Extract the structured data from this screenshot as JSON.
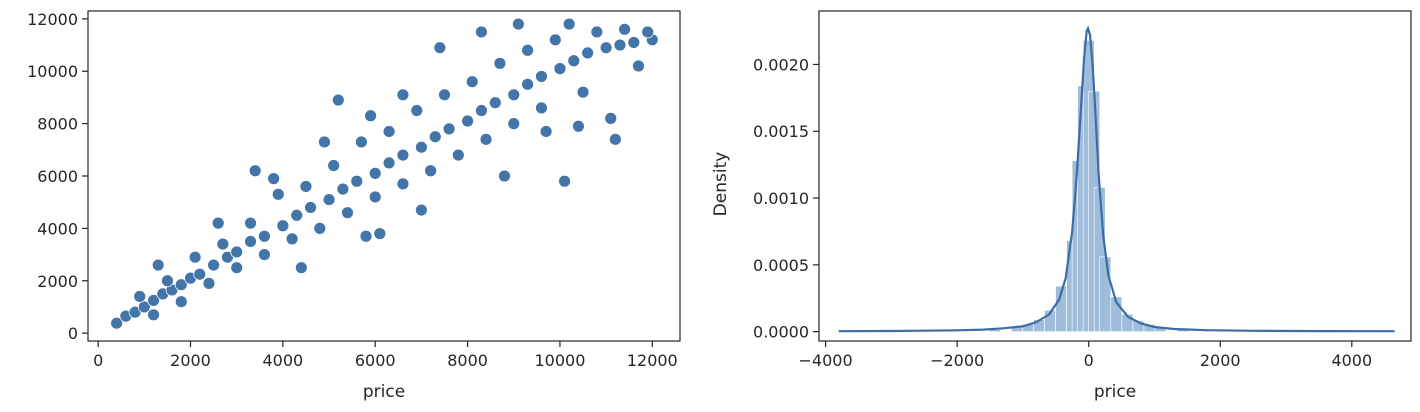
{
  "chart_data": [
    {
      "type": "scatter",
      "title": "",
      "xlabel": "price",
      "ylabel": "",
      "xlim": [
        -220,
        12600
      ],
      "ylim": [
        -300,
        12300
      ],
      "xticks": [
        {
          "value": 2000,
          "label": "2000"
        },
        {
          "value": 4000,
          "label": "4000"
        },
        {
          "value": 6000,
          "label": "6000"
        },
        {
          "value": 8000,
          "label": "8000"
        },
        {
          "value": 10000,
          "label": "10000"
        },
        {
          "value": 12000,
          "label": "12000"
        },
        {
          "value": 0,
          "label": "0"
        }
      ],
      "yticks": [
        {
          "value": 0,
          "label": "0"
        },
        {
          "value": 2000,
          "label": "2000"
        },
        {
          "value": 4000,
          "label": "4000"
        },
        {
          "value": 6000,
          "label": "6000"
        },
        {
          "value": 8000,
          "label": "8000"
        },
        {
          "value": 10000,
          "label": "10000"
        },
        {
          "value": 12000,
          "label": "12000"
        }
      ],
      "grid": false,
      "point_color": "#3a6ea5",
      "points": [
        [
          400,
          380
        ],
        [
          600,
          650
        ],
        [
          800,
          800
        ],
        [
          1000,
          1000
        ],
        [
          1200,
          1250
        ],
        [
          1400,
          1500
        ],
        [
          1600,
          1650
        ],
        [
          1800,
          1850
        ],
        [
          2000,
          2100
        ],
        [
          2200,
          2250
        ],
        [
          2500,
          2600
        ],
        [
          2800,
          2900
        ],
        [
          3000,
          3100
        ],
        [
          3300,
          3500
        ],
        [
          3600,
          3700
        ],
        [
          4000,
          4100
        ],
        [
          4300,
          4500
        ],
        [
          4600,
          4800
        ],
        [
          5000,
          5100
        ],
        [
          5300,
          5500
        ],
        [
          5600,
          5800
        ],
        [
          6000,
          6100
        ],
        [
          6300,
          6500
        ],
        [
          6600,
          6800
        ],
        [
          7000,
          7100
        ],
        [
          7300,
          7500
        ],
        [
          7600,
          7800
        ],
        [
          8000,
          8100
        ],
        [
          8300,
          8500
        ],
        [
          8600,
          8800
        ],
        [
          9000,
          9100
        ],
        [
          9300,
          9500
        ],
        [
          9600,
          9800
        ],
        [
          10000,
          10100
        ],
        [
          10300,
          10400
        ],
        [
          10600,
          10700
        ],
        [
          11000,
          10900
        ],
        [
          11300,
          11000
        ],
        [
          11600,
          11100
        ],
        [
          12000,
          11200
        ],
        [
          900,
          1400
        ],
        [
          1200,
          700
        ],
        [
          1500,
          2000
        ],
        [
          1800,
          1200
        ],
        [
          2100,
          2900
        ],
        [
          2400,
          1900
        ],
        [
          2700,
          3400
        ],
        [
          3000,
          2500
        ],
        [
          3300,
          4200
        ],
        [
          3600,
          3000
        ],
        [
          3900,
          5300
        ],
        [
          4200,
          3600
        ],
        [
          4400,
          2500
        ],
        [
          4500,
          5600
        ],
        [
          4800,
          4000
        ],
        [
          5100,
          6400
        ],
        [
          5400,
          4600
        ],
        [
          5700,
          7300
        ],
        [
          5800,
          3700
        ],
        [
          6000,
          5200
        ],
        [
          6300,
          7700
        ],
        [
          6600,
          5700
        ],
        [
          6900,
          8500
        ],
        [
          7200,
          6200
        ],
        [
          7500,
          9100
        ],
        [
          7800,
          6800
        ],
        [
          8100,
          9600
        ],
        [
          8400,
          7400
        ],
        [
          8700,
          10300
        ],
        [
          9000,
          8000
        ],
        [
          9100,
          11800
        ],
        [
          9300,
          10800
        ],
        [
          9600,
          8600
        ],
        [
          9900,
          11200
        ],
        [
          10100,
          5800
        ],
        [
          10200,
          11800
        ],
        [
          10500,
          9200
        ],
        [
          10800,
          11500
        ],
        [
          11100,
          8200
        ],
        [
          11200,
          7400
        ],
        [
          11400,
          11600
        ],
        [
          11700,
          10200
        ],
        [
          11900,
          11500
        ],
        [
          5200,
          8900
        ],
        [
          5900,
          8300
        ],
        [
          6600,
          9100
        ],
        [
          7400,
          10900
        ],
        [
          8300,
          11500
        ],
        [
          4900,
          7300
        ],
        [
          6100,
          3800
        ],
        [
          7000,
          4700
        ],
        [
          8800,
          6000
        ],
        [
          9700,
          7700
        ],
        [
          10400,
          7900
        ],
        [
          3400,
          6200
        ],
        [
          3800,
          5900
        ],
        [
          2600,
          4200
        ],
        [
          1300,
          2600
        ]
      ]
    },
    {
      "type": "histogram",
      "title": "",
      "xlabel": "price",
      "ylabel": "Density",
      "xlim": [
        -4100,
        4900
      ],
      "ylim": [
        -7e-05,
        0.0024
      ],
      "xticks": [
        {
          "value": -4000,
          "label": "−4000"
        },
        {
          "value": -2000,
          "label": "−2000"
        },
        {
          "value": 0,
          "label": "0"
        },
        {
          "value": 2000,
          "label": "2000"
        },
        {
          "value": 4000,
          "label": "4000"
        }
      ],
      "yticks": [
        {
          "value": 0,
          "label": "0.0000"
        },
        {
          "value": 0.0005,
          "label": "0.0005"
        },
        {
          "value": 0.001,
          "label": "0.0010"
        },
        {
          "value": 0.0015,
          "label": "0.0015"
        },
        {
          "value": 0.002,
          "label": "0.0020"
        }
      ],
      "grid": false,
      "bar_color": "#9fbddb",
      "line_color": "#3a6ea5",
      "bin_width": 168,
      "bins": [
        {
          "x": -3780,
          "density": 3e-06
        },
        {
          "x": -2940,
          "density": 4e-06
        },
        {
          "x": -2100,
          "density": 8e-06
        },
        {
          "x": -1428,
          "density": 1.5e-05
        },
        {
          "x": -1092,
          "density": 3.5e-05
        },
        {
          "x": -924,
          "density": 5.5e-05
        },
        {
          "x": -756,
          "density": 9e-05
        },
        {
          "x": -588,
          "density": 0.00016
        },
        {
          "x": -420,
          "density": 0.00034
        },
        {
          "x": -252,
          "density": 0.00068
        },
        {
          "x": -168,
          "density": 0.00128
        },
        {
          "x": -84,
          "density": 0.00184
        },
        {
          "x": 0,
          "density": 0.00218
        },
        {
          "x": 84,
          "density": 0.0018
        },
        {
          "x": 168,
          "density": 0.00108
        },
        {
          "x": 252,
          "density": 0.00056
        },
        {
          "x": 420,
          "density": 0.00026
        },
        {
          "x": 588,
          "density": 0.00013
        },
        {
          "x": 756,
          "density": 8e-05
        },
        {
          "x": 924,
          "density": 5.5e-05
        },
        {
          "x": 1092,
          "density": 3.5e-05
        },
        {
          "x": 1428,
          "density": 1.6e-05
        },
        {
          "x": 2100,
          "density": 8e-06
        },
        {
          "x": 3276,
          "density": 4e-06
        },
        {
          "x": 4620,
          "density": 3e-06
        }
      ],
      "kde": [
        [
          -3800,
          3e-06
        ],
        [
          -3000,
          5e-06
        ],
        [
          -2500,
          7e-06
        ],
        [
          -2000,
          1e-05
        ],
        [
          -1600,
          1.5e-05
        ],
        [
          -1300,
          2.5e-05
        ],
        [
          -1000,
          4e-05
        ],
        [
          -800,
          7e-05
        ],
        [
          -600,
          0.00013
        ],
        [
          -450,
          0.00024
        ],
        [
          -350,
          0.0004
        ],
        [
          -250,
          0.00075
        ],
        [
          -180,
          0.00118
        ],
        [
          -120,
          0.00165
        ],
        [
          -70,
          0.00205
        ],
        [
          -30,
          0.00225
        ],
        [
          -10,
          0.00227
        ],
        [
          20,
          0.00222
        ],
        [
          60,
          0.002
        ],
        [
          100,
          0.00165
        ],
        [
          150,
          0.00118
        ],
        [
          220,
          0.00072
        ],
        [
          300,
          0.00042
        ],
        [
          420,
          0.00022
        ],
        [
          600,
          0.00011
        ],
        [
          800,
          6e-05
        ],
        [
          1000,
          3.5e-05
        ],
        [
          1300,
          2e-05
        ],
        [
          1800,
          1.1e-05
        ],
        [
          2500,
          6e-06
        ],
        [
          3500,
          4e-06
        ],
        [
          4650,
          3e-06
        ]
      ]
    }
  ]
}
